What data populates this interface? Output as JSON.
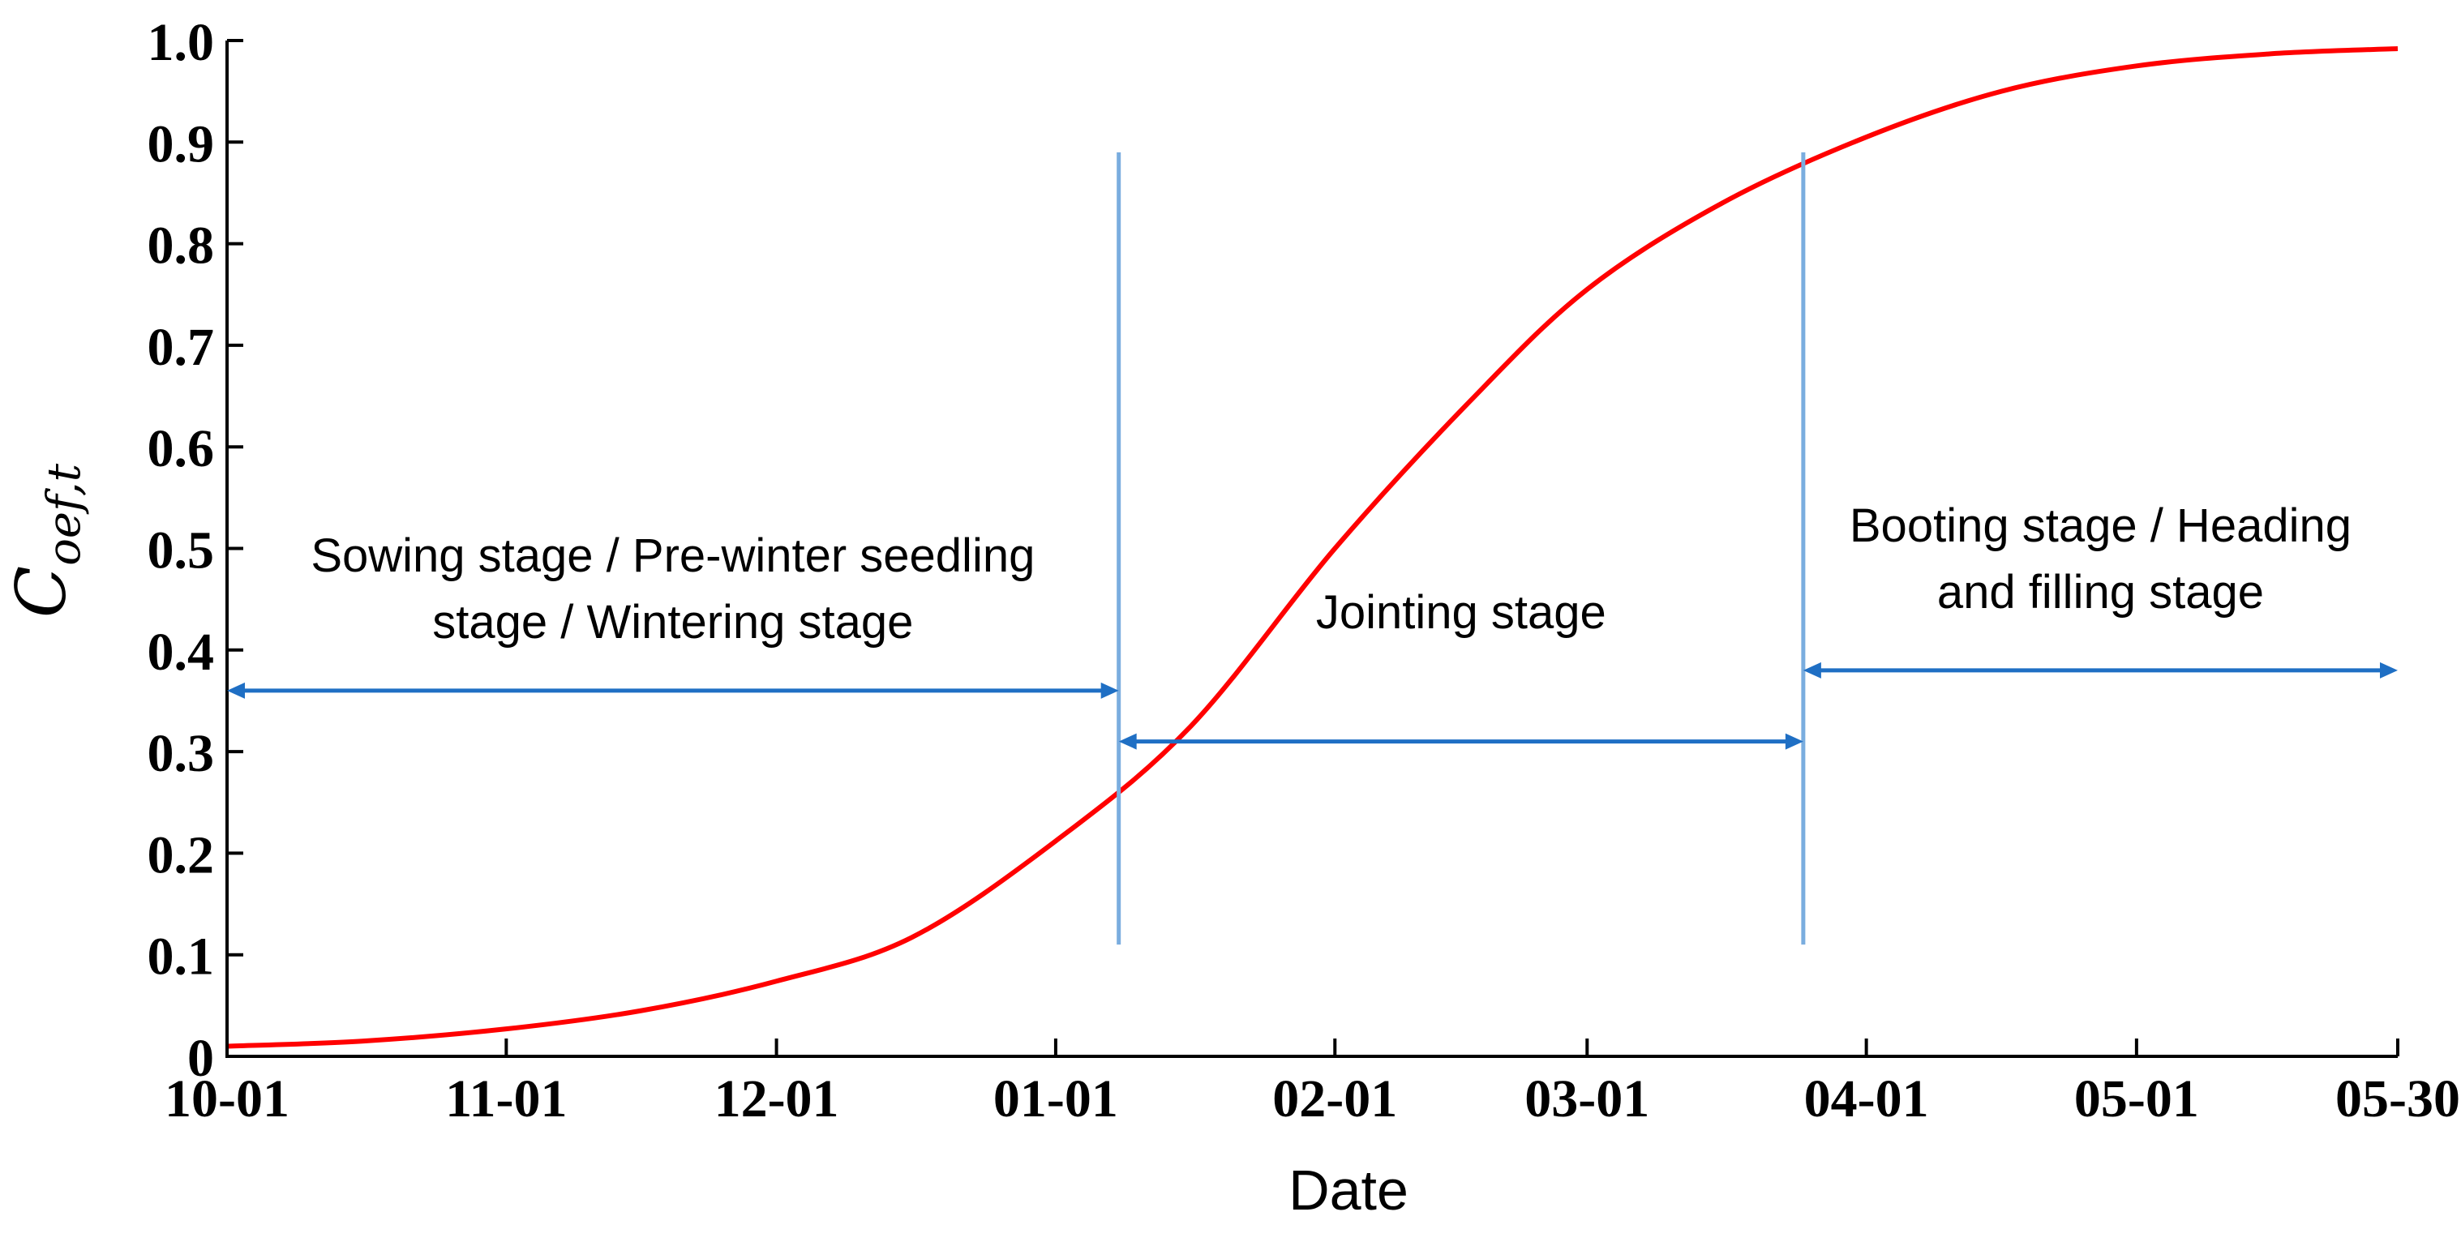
{
  "chart_data": {
    "type": "line",
    "title": "",
    "xlabel": "Date",
    "ylabel": {
      "main": "C",
      "subscript": "oef,t"
    },
    "x_ticks": [
      "10-01",
      "11-01",
      "12-01",
      "01-01",
      "02-01",
      "03-01",
      "04-01",
      "05-01",
      "05-30"
    ],
    "y_ticks": [
      "0",
      "0.1",
      "0.2",
      "0.3",
      "0.4",
      "0.5",
      "0.6",
      "0.7",
      "0.8",
      "0.9",
      "1.0"
    ],
    "xlim": [
      "10-01",
      "05-30"
    ],
    "ylim": [
      0,
      1.0
    ],
    "grid": false,
    "series": [
      {
        "color": "#ff0000",
        "x": [
          "10-01",
          "10-16",
          "11-01",
          "11-16",
          "12-01",
          "12-16",
          "01-01",
          "01-16",
          "02-01",
          "02-16",
          "03-01",
          "03-16",
          "04-01",
          "04-16",
          "05-01",
          "05-16",
          "05-30"
        ],
        "y": [
          0.01,
          0.015,
          0.027,
          0.045,
          0.074,
          0.117,
          0.212,
          0.325,
          0.5,
          0.645,
          0.755,
          0.84,
          0.905,
          0.95,
          0.975,
          0.987,
          0.992
        ]
      }
    ],
    "stage_boundaries": [
      {
        "date": "01-08",
        "color": "#7aaddf"
      },
      {
        "date": "03-25",
        "color": "#7aaddf"
      }
    ],
    "stages": [
      {
        "lines": [
          "Sowing stage / Pre-winter seedling",
          "stage / Wintering stage"
        ],
        "from": "10-01",
        "to": "01-08",
        "arrow_y": 0.36
      },
      {
        "lines": [
          "Jointing stage"
        ],
        "from": "01-08",
        "to": "03-25",
        "arrow_y": 0.31
      },
      {
        "lines": [
          "Booting stage / Heading",
          "and filling stage"
        ],
        "from": "03-25",
        "to": "05-30",
        "arrow_y": 0.38
      }
    ],
    "arrow_color": "#1f6fc4"
  }
}
